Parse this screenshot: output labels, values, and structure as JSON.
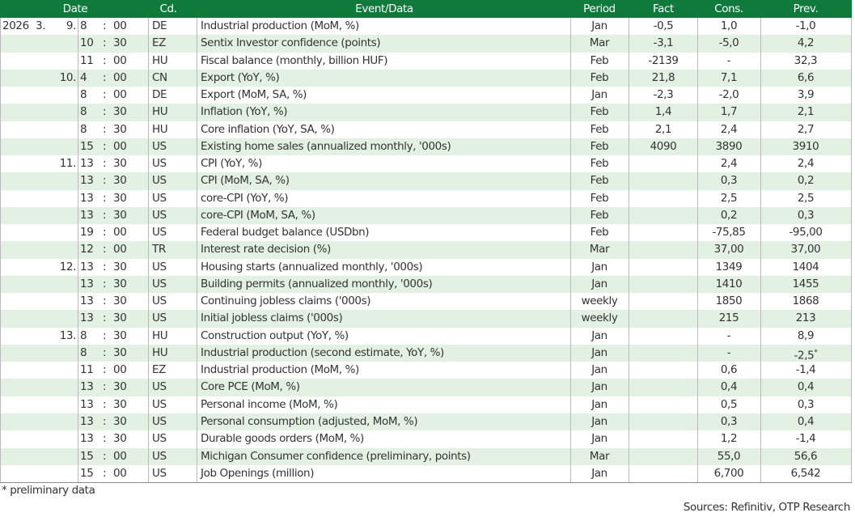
{
  "header": {
    "date": "Date",
    "code": "Cd.",
    "event": "Event/Data",
    "period": "Period",
    "fact": "Fact",
    "cons": "Cons.",
    "prev": "Prev."
  },
  "time_separator": ":",
  "rows": [
    {
      "year": "2026",
      "month": "3.",
      "day": "9.",
      "hour": "8",
      "minute": "00",
      "code": "DE",
      "event": "Industrial production (MoM, %)",
      "period": "Jan",
      "fact": "-0,5",
      "cons": "1,0",
      "prev": "-1,0"
    },
    {
      "hour": "10",
      "minute": "30",
      "code": "EZ",
      "event": "Sentix Investor confidence (points)",
      "period": "Mar",
      "fact": "-3,1",
      "cons": "-5,0",
      "prev": "4,2"
    },
    {
      "hour": "11",
      "minute": "00",
      "code": "HU",
      "event": "Fiscal balance (monthly, billion HUF)",
      "period": "Feb",
      "fact": "-2139",
      "cons": "-",
      "prev": "32,3"
    },
    {
      "day": "10.",
      "hour": "4",
      "minute": "00",
      "code": "CN",
      "event": "Export (YoY, %)",
      "period": "Feb",
      "fact": "21,8",
      "cons": "7,1",
      "prev": "6,6"
    },
    {
      "hour": "8",
      "minute": "00",
      "code": "DE",
      "event": "Export (MoM, SA, %)",
      "period": "Jan",
      "fact": "-2,3",
      "cons": "-2,0",
      "prev": "3,9"
    },
    {
      "hour": "8",
      "minute": "30",
      "code": "HU",
      "event": "Inflation (YoY, %)",
      "period": "Feb",
      "fact": "1,4",
      "cons": "1,7",
      "prev": "2,1"
    },
    {
      "hour": "8",
      "minute": "30",
      "code": "HU",
      "event": "Core inflation (YoY, SA, %)",
      "period": "Feb",
      "fact": "2,1",
      "cons": "2,4",
      "prev": "2,7"
    },
    {
      "hour": "15",
      "minute": "00",
      "code": "US",
      "event": "Existing home sales (annualized monthly, '000s)",
      "period": "Feb",
      "fact": "4090",
      "cons": "3890",
      "prev": "3910"
    },
    {
      "day": "11.",
      "hour": "13",
      "minute": "30",
      "code": "US",
      "event": "CPI (YoY, %)",
      "period": "Feb",
      "cons": "2,4",
      "prev": "2,4"
    },
    {
      "hour": "13",
      "minute": "30",
      "code": "US",
      "event": "CPI (MoM, SA, %)",
      "period": "Feb",
      "cons": "0,3",
      "prev": "0,2"
    },
    {
      "hour": "13",
      "minute": "30",
      "code": "US",
      "event": "core-CPI (YoY, %)",
      "period": "Feb",
      "cons": "2,5",
      "prev": "2,5"
    },
    {
      "hour": "13",
      "minute": "30",
      "code": "US",
      "event": "core-CPI (MoM, SA, %)",
      "period": "Feb",
      "cons": "0,2",
      "prev": "0,3"
    },
    {
      "hour": "19",
      "minute": "00",
      "code": "US",
      "event": "Federal budget balance (USDbn)",
      "period": "Feb",
      "cons": "-75,85",
      "prev": "-95,00"
    },
    {
      "hour": "12",
      "minute": "00",
      "code": "TR",
      "event": "Interest rate decision (%)",
      "period": "Mar",
      "cons": "37,00",
      "prev": "37,00"
    },
    {
      "day": "12.",
      "hour": "13",
      "minute": "30",
      "code": "US",
      "event": "Housing starts (annualized monthly, '000s)",
      "period": "Jan",
      "cons": "1349",
      "prev": "1404"
    },
    {
      "hour": "13",
      "minute": "30",
      "code": "US",
      "event": "Building permits (annualized monthly, '000s)",
      "period": "Jan",
      "cons": "1410",
      "prev": "1455"
    },
    {
      "hour": "13",
      "minute": "30",
      "code": "US",
      "event": "Continuing jobless claims ('000s)",
      "period": "weekly",
      "cons": "1850",
      "prev": "1868"
    },
    {
      "hour": "13",
      "minute": "30",
      "code": "US",
      "event": "Initial jobless claims ('000s)",
      "period": "weekly",
      "cons": "215",
      "prev": "213"
    },
    {
      "day": "13.",
      "hour": "8",
      "minute": "30",
      "code": "HU",
      "event": "Construction output (YoY, %)",
      "period": "Jan",
      "cons": "-",
      "prev": "8,9"
    },
    {
      "hour": "8",
      "minute": "30",
      "code": "HU",
      "event": "Industrial production (second estimate, YoY, %)",
      "period": "Jan",
      "cons": "-",
      "prev": "-2,5",
      "prev_mark": "*"
    },
    {
      "hour": "11",
      "minute": "00",
      "code": "EZ",
      "event": "Industrial production (MoM, %)",
      "period": "Jan",
      "cons": "0,6",
      "prev": "-1,4"
    },
    {
      "hour": "13",
      "minute": "30",
      "code": "US",
      "event": "Core PCE (MoM, %)",
      "period": "Jan",
      "cons": "0,4",
      "prev": "0,4"
    },
    {
      "hour": "13",
      "minute": "30",
      "code": "US",
      "event": "Personal income (MoM, %)",
      "period": "Jan",
      "cons": "0,5",
      "prev": "0,3"
    },
    {
      "hour": "13",
      "minute": "30",
      "code": "US",
      "event": "Personal consumption (adjusted, MoM, %)",
      "period": "Jan",
      "cons": "0,3",
      "prev": "0,4"
    },
    {
      "hour": "13",
      "minute": "30",
      "code": "US",
      "event": "Durable goods orders (MoM, %)",
      "period": "Jan",
      "cons": "1,2",
      "prev": "-1,4"
    },
    {
      "hour": "15",
      "minute": "00",
      "code": "US",
      "event": "Michigan Consumer confidence (preliminary, points)",
      "period": "Mar",
      "cons": "55,0",
      "prev": "56,6"
    },
    {
      "hour": "15",
      "minute": "00",
      "code": "US",
      "event": "Job Openings (million)",
      "period": "Jan",
      "cons": "6,700",
      "prev": "6,542"
    }
  ],
  "footnote": "* preliminary data",
  "sources": "Sources: Refinitiv, OTP Research"
}
